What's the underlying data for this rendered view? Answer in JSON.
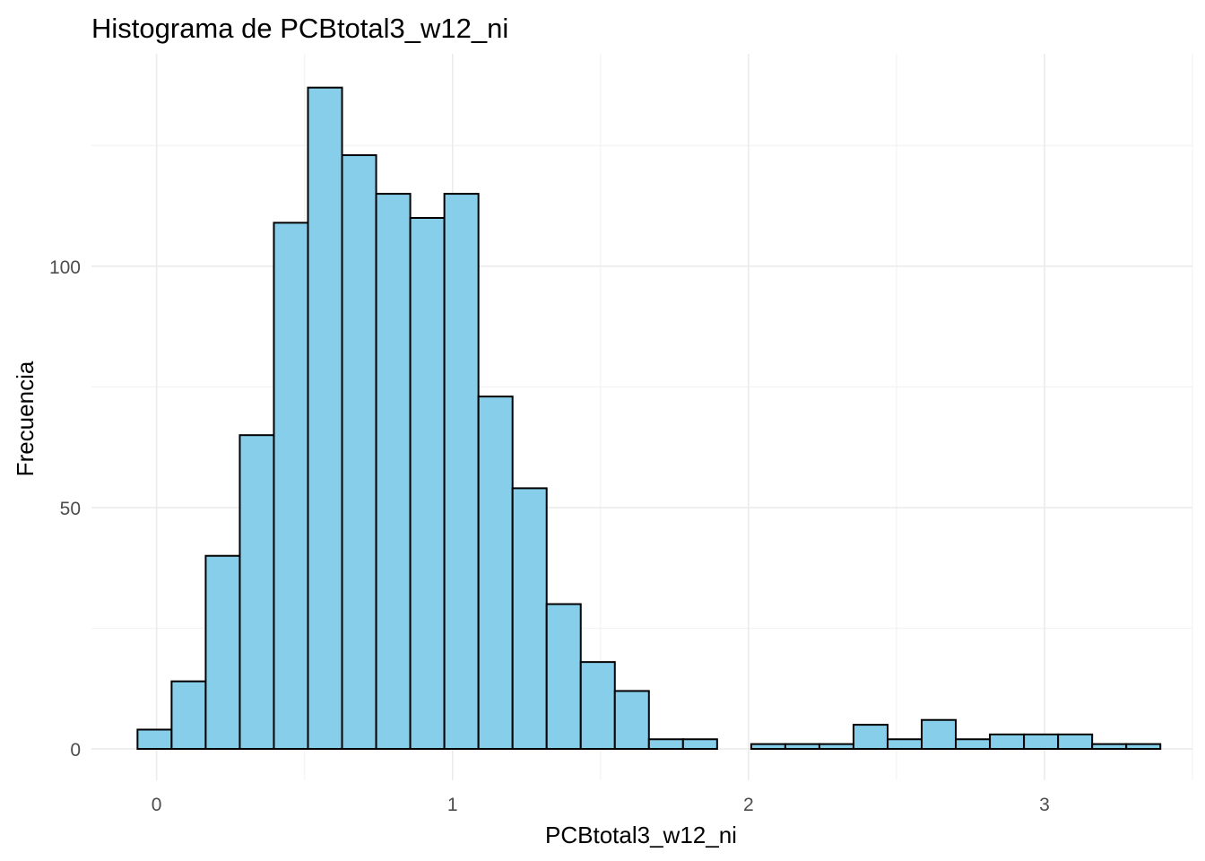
{
  "chart_data": {
    "type": "histogram",
    "title": "Histograma de PCBtotal3_w12_ni",
    "xlabel": "PCBtotal3_w12_ni",
    "ylabel": "Frecuencia",
    "bin_width": 0.1152,
    "bins": [
      {
        "start": -0.0644,
        "end": 0.0508,
        "count": 4
      },
      {
        "start": 0.0508,
        "end": 0.166,
        "count": 14
      },
      {
        "start": 0.166,
        "end": 0.2812,
        "count": 40
      },
      {
        "start": 0.2812,
        "end": 0.3964,
        "count": 65
      },
      {
        "start": 0.3964,
        "end": 0.5116,
        "count": 109
      },
      {
        "start": 0.5116,
        "end": 0.6268,
        "count": 137
      },
      {
        "start": 0.6268,
        "end": 0.742,
        "count": 123
      },
      {
        "start": 0.742,
        "end": 0.8572,
        "count": 115
      },
      {
        "start": 0.8572,
        "end": 0.9724,
        "count": 110
      },
      {
        "start": 0.9724,
        "end": 1.0876,
        "count": 115
      },
      {
        "start": 1.0876,
        "end": 1.2028,
        "count": 73
      },
      {
        "start": 1.2028,
        "end": 1.318,
        "count": 54
      },
      {
        "start": 1.318,
        "end": 1.4332,
        "count": 30
      },
      {
        "start": 1.4332,
        "end": 1.5484,
        "count": 18
      },
      {
        "start": 1.5484,
        "end": 1.6636,
        "count": 12
      },
      {
        "start": 1.6636,
        "end": 1.7788,
        "count": 2
      },
      {
        "start": 1.7788,
        "end": 1.894,
        "count": 2
      },
      {
        "start": 1.894,
        "end": 2.0092,
        "count": 0
      },
      {
        "start": 2.0092,
        "end": 2.1244,
        "count": 1
      },
      {
        "start": 2.1244,
        "end": 2.2396,
        "count": 1
      },
      {
        "start": 2.2396,
        "end": 2.3548,
        "count": 1
      },
      {
        "start": 2.3548,
        "end": 2.47,
        "count": 5
      },
      {
        "start": 2.47,
        "end": 2.5852,
        "count": 2
      },
      {
        "start": 2.5852,
        "end": 2.7004,
        "count": 6
      },
      {
        "start": 2.7004,
        "end": 2.8156,
        "count": 2
      },
      {
        "start": 2.8156,
        "end": 2.9308,
        "count": 3
      },
      {
        "start": 2.9308,
        "end": 3.046,
        "count": 3
      },
      {
        "start": 3.046,
        "end": 3.1612,
        "count": 3
      },
      {
        "start": 3.1612,
        "end": 3.2764,
        "count": 1
      },
      {
        "start": 3.2764,
        "end": 3.3916,
        "count": 1
      }
    ],
    "xlim": [
      -0.22,
      3.5
    ],
    "ylim": [
      -6.5,
      144
    ],
    "x_ticks": [
      0,
      1,
      2,
      3
    ],
    "x_tick_labels": [
      "0",
      "1",
      "2",
      "3"
    ],
    "y_ticks": [
      0,
      50,
      100
    ],
    "y_tick_labels": [
      "0",
      "50",
      "100"
    ],
    "grid": true,
    "theme": "minimal",
    "legend": "none",
    "colors": {
      "bar_fill": "#87CEEB",
      "bar_stroke": "#000000",
      "grid_major": "#EBEBEB",
      "grid_minor": "#F3F3F3",
      "tick_text": "#4D4D4D",
      "title_text": "#000000"
    }
  }
}
